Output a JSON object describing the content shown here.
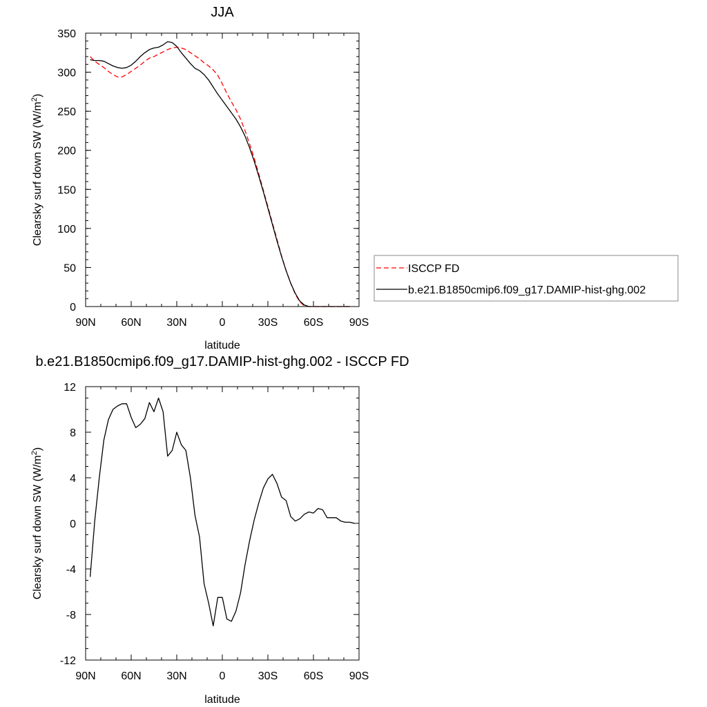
{
  "chart_data": [
    {
      "type": "line",
      "title": "JJA",
      "xlabel": "latitude",
      "ylabel": "Clearsky surf down SW (W/m",
      "ylabel_sup": "2",
      "ylabel_end": ")",
      "xlim": [
        90,
        -90
      ],
      "ylim": [
        0,
        350
      ],
      "xticks": [
        {
          "v": 90,
          "label": "90N"
        },
        {
          "v": 60,
          "label": "60N"
        },
        {
          "v": 30,
          "label": "30N"
        },
        {
          "v": 0,
          "label": "0"
        },
        {
          "v": -30,
          "label": "30S"
        },
        {
          "v": -60,
          "label": "60S"
        },
        {
          "v": -90,
          "label": "90S"
        }
      ],
      "yticks": [
        0,
        50,
        100,
        150,
        200,
        250,
        300,
        350
      ],
      "legend_placement": "right",
      "series": [
        {
          "name": "ISCCP FD",
          "color": "#ff0000",
          "dash": true,
          "x": [
            87,
            84,
            81,
            78,
            75,
            72,
            69,
            66,
            63,
            60,
            57,
            54,
            51,
            48,
            45,
            42,
            39,
            36,
            33,
            30,
            27,
            24,
            21,
            18,
            15,
            12,
            9,
            6,
            3,
            0,
            -3,
            -6,
            -9,
            -12,
            -15,
            -18,
            -21,
            -24,
            -27,
            -30,
            -33,
            -36,
            -39,
            -42,
            -45,
            -48,
            -51,
            -54,
            -57,
            -60,
            -63,
            -66,
            -69,
            -72,
            -75,
            -78,
            -81,
            -84
          ],
          "y": [
            320,
            314,
            310,
            306,
            301,
            297,
            294,
            294,
            297,
            301,
            305,
            309,
            314,
            318,
            320,
            323,
            326,
            329,
            331,
            332,
            331,
            329,
            325,
            321,
            317,
            312,
            308,
            303,
            296,
            285,
            273,
            262,
            252,
            240,
            225,
            208,
            190,
            170,
            149,
            128,
            107,
            86,
            65,
            46,
            30,
            16,
            6,
            1,
            0,
            0,
            0,
            0,
            0,
            0,
            0,
            0,
            0,
            0
          ]
        },
        {
          "name": "b.e21.B1850cmip6.f09_g17.DAMIP-hist-ghg.002",
          "color": "#000000",
          "dash": false,
          "x": [
            87,
            84,
            81,
            78,
            75,
            72,
            69,
            66,
            63,
            60,
            57,
            54,
            51,
            48,
            45,
            42,
            39,
            36,
            33,
            30,
            27,
            24,
            21,
            18,
            15,
            12,
            9,
            6,
            3,
            0,
            -3,
            -6,
            -9,
            -12,
            -15,
            -18,
            -21,
            -24,
            -27,
            -30,
            -33,
            -36,
            -39,
            -42,
            -45,
            -48,
            -51,
            -54,
            -57,
            -60,
            -63,
            -66,
            -69,
            -72,
            -75,
            -78,
            -81,
            -84
          ],
          "y": [
            316,
            315,
            315,
            314,
            311,
            308,
            306,
            305,
            306,
            309,
            314,
            320,
            325,
            329,
            331,
            332,
            335,
            339,
            338,
            333,
            325,
            318,
            311,
            305,
            302,
            297,
            290,
            281,
            272,
            264,
            256,
            248,
            240,
            230,
            218,
            203,
            186,
            167,
            147,
            126,
            105,
            84,
            64,
            46,
            30,
            17,
            7,
            2,
            0,
            0,
            0,
            0,
            0,
            0,
            0,
            0,
            0,
            0
          ]
        }
      ]
    },
    {
      "type": "line",
      "title": "b.e21.B1850cmip6.f09_g17.DAMIP-hist-ghg.002 - ISCCP FD",
      "xlabel": "latitude",
      "ylabel": "Clearsky surf down SW (W/m",
      "ylabel_sup": "2",
      "ylabel_end": ")",
      "xlim": [
        90,
        -90
      ],
      "ylim": [
        -12,
        12
      ],
      "xticks": [
        {
          "v": 90,
          "label": "90N"
        },
        {
          "v": 60,
          "label": "60N"
        },
        {
          "v": 30,
          "label": "30N"
        },
        {
          "v": 0,
          "label": "0"
        },
        {
          "v": -30,
          "label": "30S"
        },
        {
          "v": -60,
          "label": "60S"
        },
        {
          "v": -90,
          "label": "90S"
        }
      ],
      "yticks": [
        -12,
        -8,
        -4,
        0,
        4,
        8,
        12
      ],
      "series": [
        {
          "color": "#000000",
          "dash": false,
          "x": [
            87,
            84,
            81,
            78,
            75,
            72,
            69,
            66,
            63,
            60,
            57,
            54,
            51,
            48,
            45,
            42,
            39,
            36,
            33,
            30,
            27,
            24,
            21,
            18,
            15,
            12,
            9,
            6,
            3,
            0,
            -3,
            -6,
            -9,
            -12,
            -15,
            -18,
            -21,
            -24,
            -27,
            -30,
            -33,
            -36,
            -39,
            -42,
            -45,
            -48,
            -51,
            -54,
            -57,
            -60,
            -63,
            -66,
            -69,
            -72,
            -75,
            -78,
            -81,
            -84,
            -87
          ],
          "y": [
            -4.7,
            0.2,
            4.0,
            7.3,
            9.1,
            10.0,
            10.3,
            10.5,
            10.5,
            9.3,
            8.4,
            8.7,
            9.2,
            10.6,
            9.8,
            11.0,
            9.8,
            5.9,
            6.4,
            8.0,
            6.9,
            6.4,
            4.0,
            0.7,
            -1.2,
            -5.3,
            -7.0,
            -9.0,
            -6.5,
            -6.5,
            -8.4,
            -8.6,
            -7.7,
            -6.1,
            -3.6,
            -1.5,
            0.3,
            1.8,
            3.1,
            3.9,
            4.3,
            3.5,
            2.3,
            2.0,
            0.6,
            0.2,
            0.4,
            0.8,
            1.0,
            0.9,
            1.3,
            1.2,
            0.5,
            0.5,
            0.5,
            0.2,
            0.1,
            0.1,
            0.0
          ]
        }
      ]
    }
  ]
}
